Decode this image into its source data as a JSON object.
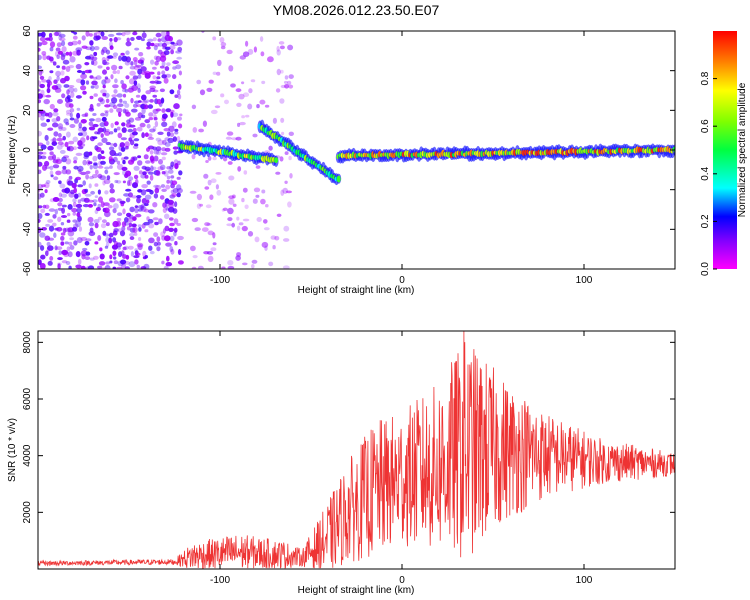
{
  "title": "YM08.2026.012.23.50.E07",
  "chart_data": [
    {
      "type": "heatmap",
      "name": "spectrogram",
      "xlabel": "Height of straight line (km)",
      "ylabel": "Frequency (Hz)",
      "xlim": [
        -200,
        150
      ],
      "ylim": [
        -60,
        60
      ],
      "xticks": [
        -100,
        0,
        100
      ],
      "yticks": [
        -60,
        -40,
        -20,
        0,
        20,
        40,
        60
      ],
      "colorbar": {
        "label": "Normalized spectral amplitude",
        "range": [
          0,
          1
        ],
        "ticks": [
          0.0,
          0.2,
          0.4,
          0.6,
          0.8
        ],
        "tick_labels": [
          "0.0",
          "0.2",
          "0.4",
          "0.6",
          "0.8"
        ]
      },
      "features": [
        {
          "region": "noise",
          "x_range": [
            -200,
            -122
          ],
          "f_range": [
            -60,
            60
          ],
          "level": 0.15
        },
        {
          "region": "noise",
          "x_range": [
            -115,
            -62
          ],
          "f_range": [
            -60,
            60
          ],
          "level": 0.05
        },
        {
          "region": "track",
          "x_range": [
            -122,
            -70
          ],
          "f_start": 2,
          "f_end": -5,
          "level": 0.55
        },
        {
          "region": "branch",
          "x_range": [
            -78,
            -35
          ],
          "f_start": 12,
          "f_end": -15,
          "level": 0.5
        },
        {
          "region": "track",
          "x_range": [
            -35,
            150
          ],
          "f_start": -3,
          "f_end": 0,
          "level": 0.7
        }
      ]
    },
    {
      "type": "line",
      "name": "snr",
      "xlabel": "Height of straight line (km)",
      "ylabel": "SNR (10 * v/v)",
      "xlim": [
        -200,
        150
      ],
      "ylim": [
        0,
        8400
      ],
      "xticks": [
        -100,
        0,
        100
      ],
      "yticks": [
        2000,
        4000,
        6000,
        8000
      ],
      "color": "#ee3333",
      "envelope": [
        {
          "x": -200,
          "mean": 200,
          "amp": 80
        },
        {
          "x": -125,
          "mean": 250,
          "amp": 100
        },
        {
          "x": -115,
          "mean": 450,
          "amp": 500
        },
        {
          "x": -90,
          "mean": 600,
          "amp": 650
        },
        {
          "x": -65,
          "mean": 500,
          "amp": 500
        },
        {
          "x": -55,
          "mean": 400,
          "amp": 300
        },
        {
          "x": -42,
          "mean": 1000,
          "amp": 1200
        },
        {
          "x": -30,
          "mean": 2000,
          "amp": 1800
        },
        {
          "x": -15,
          "mean": 2800,
          "amp": 2400
        },
        {
          "x": 0,
          "mean": 3200,
          "amp": 2400
        },
        {
          "x": 20,
          "mean": 3600,
          "amp": 3000
        },
        {
          "x": 35,
          "mean": 4200,
          "amp": 4000
        },
        {
          "x": 55,
          "mean": 4200,
          "amp": 2600
        },
        {
          "x": 80,
          "mean": 4000,
          "amp": 1500
        },
        {
          "x": 110,
          "mean": 3800,
          "amp": 800
        },
        {
          "x": 150,
          "mean": 3700,
          "amp": 400
        }
      ],
      "peak": {
        "x": 34,
        "y": 8400
      }
    }
  ]
}
